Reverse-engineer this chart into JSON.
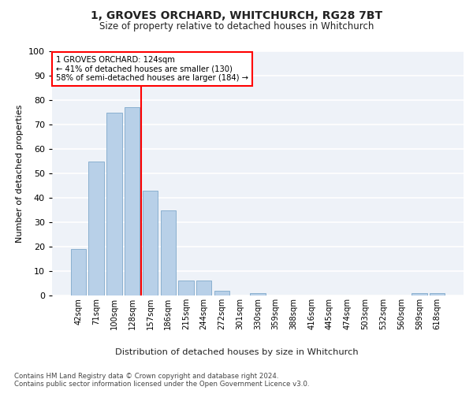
{
  "title": "1, GROVES ORCHARD, WHITCHURCH, RG28 7BT",
  "subtitle": "Size of property relative to detached houses in Whitchurch",
  "xlabel": "Distribution of detached houses by size in Whitchurch",
  "ylabel": "Number of detached properties",
  "categories": [
    "42sqm",
    "71sqm",
    "100sqm",
    "128sqm",
    "157sqm",
    "186sqm",
    "215sqm",
    "244sqm",
    "272sqm",
    "301sqm",
    "330sqm",
    "359sqm",
    "388sqm",
    "416sqm",
    "445sqm",
    "474sqm",
    "503sqm",
    "532sqm",
    "560sqm",
    "589sqm",
    "618sqm"
  ],
  "values": [
    19,
    55,
    75,
    77,
    43,
    35,
    6,
    6,
    2,
    0,
    1,
    0,
    0,
    0,
    0,
    0,
    0,
    0,
    0,
    1,
    1
  ],
  "bar_color": "#b8d0e8",
  "bar_edge_color": "#8ab0d0",
  "vline_x": 3.5,
  "vline_label": "1 GROVES ORCHARD: 124sqm",
  "annotation_line1": "← 41% of detached houses are smaller (130)",
  "annotation_line2": "58% of semi-detached houses are larger (184) →",
  "background_color": "#eef2f8",
  "ylim": [
    0,
    100
  ],
  "yticks": [
    0,
    10,
    20,
    30,
    40,
    50,
    60,
    70,
    80,
    90,
    100
  ],
  "footnote1": "Contains HM Land Registry data © Crown copyright and database right 2024.",
  "footnote2": "Contains public sector information licensed under the Open Government Licence v3.0."
}
